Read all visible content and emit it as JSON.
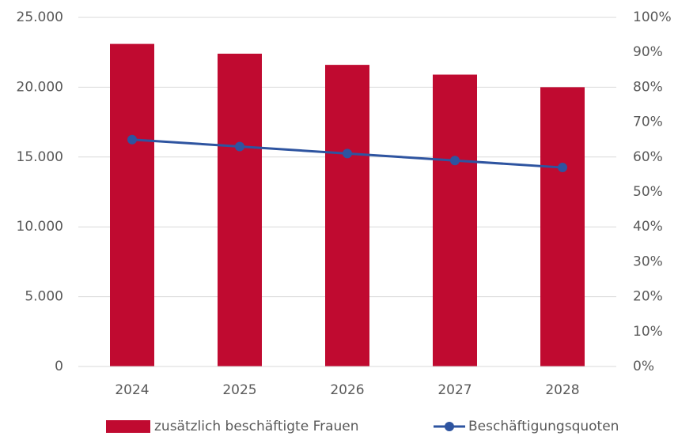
{
  "chart_data": {
    "type": "bar_line",
    "categories": [
      "2024",
      "2025",
      "2026",
      "2027",
      "2028"
    ],
    "series": [
      {
        "name": "zusätzlich beschäftigte Frauen",
        "type": "bar",
        "color": "#c00a30",
        "values": [
          23100,
          22400,
          21600,
          20900,
          20000
        ]
      },
      {
        "name": "Beschäftigungsquoten",
        "type": "line",
        "axis": "y2",
        "color": "#2e54a0",
        "values": [
          65,
          63,
          61,
          59,
          57
        ]
      }
    ],
    "ylim": [
      0,
      25000
    ],
    "yticks": [
      0,
      {
        "value": 5000,
        "label": "5.000"
      },
      {
        "value": 10000,
        "label": "10.000"
      },
      {
        "value": 15000,
        "label": "15.000"
      },
      {
        "value": 20000,
        "label": "20.000"
      },
      {
        "value": 25000,
        "label": "25.000"
      }
    ],
    "y2lim": [
      0,
      100
    ],
    "y2ticks": [
      {
        "value": 0,
        "label": "0%"
      },
      {
        "value": 10,
        "label": "10%"
      },
      {
        "value": 20,
        "label": "20%"
      },
      {
        "value": 30,
        "label": "30%"
      },
      {
        "value": 40,
        "label": "40%"
      },
      {
        "value": 50,
        "label": "50%"
      },
      {
        "value": 60,
        "label": "60%"
      },
      {
        "value": 70,
        "label": "70%"
      },
      {
        "value": 80,
        "label": "80%"
      },
      {
        "value": 90,
        "label": "90%"
      },
      {
        "value": 100,
        "label": "100%"
      }
    ],
    "grid": true,
    "legend": "bottom"
  }
}
